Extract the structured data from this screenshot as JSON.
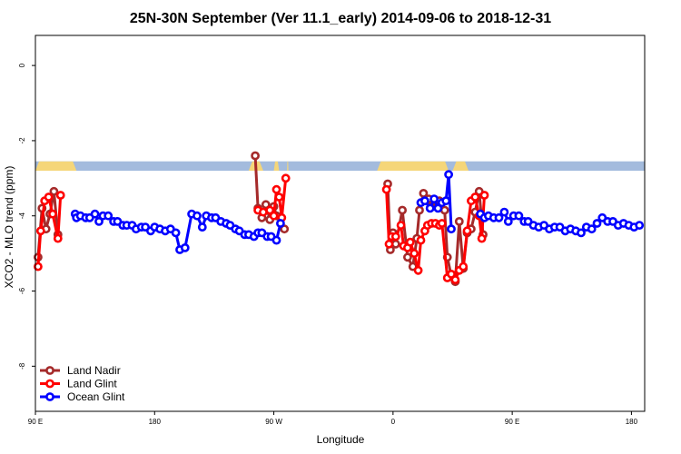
{
  "chart_data": {
    "type": "line",
    "title": "25N-30N September (Ver 11.1_early)   2014-09-06 to 2018-12-31",
    "xlabel": "Longitude",
    "ylabel": "XCO2 - MLO trend (ppm)",
    "xlim": [
      90,
      550
    ],
    "ylim": [
      -9.2,
      0.8
    ],
    "x_ticks": [
      {
        "value": 90,
        "label": "90 E"
      },
      {
        "value": 180,
        "label": "180"
      },
      {
        "value": 270,
        "label": "90 W"
      },
      {
        "value": 360,
        "label": "0"
      },
      {
        "value": 450,
        "label": "90 E"
      },
      {
        "value": 540,
        "label": "180"
      }
    ],
    "y_ticks": [
      {
        "value": 0,
        "label": "0"
      },
      {
        "value": -2,
        "label": "-2"
      },
      {
        "value": -4,
        "label": "-4"
      },
      {
        "value": -6,
        "label": "-6"
      },
      {
        "value": -8,
        "label": "-8"
      }
    ],
    "legend_position": "bottom-left",
    "land_mask": {
      "y_range": [
        -2.55,
        -2.8
      ],
      "ocean_color": "#a3bbdd",
      "land_color": "#f5d679",
      "land_segments": [
        [
          90,
          121
        ],
        [
          251,
          262
        ],
        [
          270,
          274
        ],
        [
          280,
          281
        ],
        [
          348,
          402
        ],
        [
          405,
          417
        ]
      ]
    },
    "series": [
      {
        "name": "Land Nadir",
        "color": "#a52a2a",
        "segments": [
          [
            [
              92,
              -5.1
            ],
            [
              95,
              -3.8
            ],
            [
              98,
              -4.35
            ],
            [
              101,
              -3.95
            ],
            [
              104,
              -3.35
            ],
            [
              107,
              -4.5
            ]
          ],
          [
            [
              256,
              -2.4
            ],
            [
              258,
              -3.8
            ],
            [
              261,
              -4.05
            ],
            [
              264,
              -3.7
            ],
            [
              267,
              -4.1
            ],
            [
              270,
              -3.75
            ],
            [
              272,
              -4.0
            ],
            [
              278,
              -4.35
            ]
          ],
          [
            [
              356,
              -3.15
            ],
            [
              358,
              -4.9
            ],
            [
              360,
              -4.45
            ],
            [
              362,
              -4.75
            ],
            [
              367,
              -3.85
            ],
            [
              371,
              -5.1
            ],
            [
              375,
              -5.35
            ],
            [
              378,
              -4.6
            ],
            [
              380,
              -3.85
            ],
            [
              383,
              -3.4
            ],
            [
              387,
              -3.55
            ],
            [
              390,
              -3.7
            ],
            [
              393,
              -3.75
            ],
            [
              395,
              -3.6
            ],
            [
              399,
              -3.85
            ],
            [
              401,
              -5.1
            ],
            [
              404,
              -5.6
            ],
            [
              407,
              -5.75
            ],
            [
              410,
              -4.15
            ],
            [
              413,
              -5.4
            ],
            [
              416,
              -4.45
            ],
            [
              419,
              -4.35
            ],
            [
              422,
              -3.9
            ],
            [
              425,
              -3.35
            ],
            [
              428,
              -4.5
            ]
          ]
        ]
      },
      {
        "name": "Land Glint",
        "color": "#ff0000",
        "segments": [
          [
            [
              92,
              -5.35
            ],
            [
              94,
              -4.4
            ],
            [
              97,
              -3.6
            ],
            [
              100,
              -3.5
            ],
            [
              103,
              -3.95
            ],
            [
              107,
              -4.6
            ],
            [
              109,
              -3.45
            ]
          ],
          [
            [
              258,
              -3.85
            ],
            [
              262,
              -3.9
            ],
            [
              267,
              -3.85
            ],
            [
              270,
              -4.0
            ],
            [
              272,
              -3.3
            ],
            [
              274,
              -3.5
            ],
            [
              276,
              -4.05
            ],
            [
              279,
              -3.0
            ]
          ],
          [
            [
              355,
              -3.3
            ],
            [
              357,
              -4.75
            ],
            [
              359,
              -4.55
            ],
            [
              362,
              -4.55
            ],
            [
              366,
              -4.25
            ],
            [
              368,
              -4.8
            ],
            [
              371,
              -4.85
            ],
            [
              373,
              -4.7
            ],
            [
              376,
              -5.0
            ],
            [
              379,
              -5.45
            ],
            [
              381,
              -4.65
            ],
            [
              384,
              -4.4
            ],
            [
              386,
              -4.25
            ],
            [
              389,
              -4.2
            ],
            [
              392,
              -4.2
            ],
            [
              395,
              -4.25
            ],
            [
              397,
              -4.2
            ],
            [
              401,
              -5.65
            ],
            [
              404,
              -5.55
            ],
            [
              407,
              -5.7
            ],
            [
              410,
              -5.45
            ],
            [
              413,
              -5.35
            ],
            [
              416,
              -4.4
            ],
            [
              419,
              -3.6
            ],
            [
              422,
              -3.5
            ],
            [
              425,
              -4.0
            ],
            [
              427,
              -4.6
            ],
            [
              429,
              -3.45
            ]
          ]
        ]
      },
      {
        "name": "Ocean Glint",
        "color": "#0000ff",
        "segments": [
          [
            [
              120,
              -3.95
            ],
            [
              121,
              -4.05
            ],
            [
              124,
              -4.0
            ],
            [
              128,
              -4.05
            ],
            [
              131,
              -4.05
            ],
            [
              135,
              -3.95
            ],
            [
              138,
              -4.15
            ],
            [
              141,
              -4.0
            ],
            [
              145,
              -4.0
            ],
            [
              149,
              -4.15
            ],
            [
              152,
              -4.15
            ],
            [
              156,
              -4.25
            ],
            [
              159,
              -4.25
            ],
            [
              163,
              -4.25
            ],
            [
              166,
              -4.35
            ],
            [
              170,
              -4.3
            ],
            [
              173,
              -4.3
            ],
            [
              177,
              -4.4
            ],
            [
              180,
              -4.3
            ],
            [
              184,
              -4.35
            ],
            [
              188,
              -4.4
            ],
            [
              192,
              -4.35
            ],
            [
              196,
              -4.45
            ],
            [
              199,
              -4.9
            ],
            [
              203,
              -4.85
            ],
            [
              208,
              -3.95
            ],
            [
              212,
              -4.0
            ],
            [
              216,
              -4.3
            ],
            [
              219,
              -4.0
            ],
            [
              223,
              -4.05
            ],
            [
              226,
              -4.05
            ],
            [
              230,
              -4.15
            ],
            [
              234,
              -4.2
            ],
            [
              237,
              -4.25
            ],
            [
              241,
              -4.35
            ],
            [
              244,
              -4.4
            ],
            [
              248,
              -4.5
            ],
            [
              251,
              -4.5
            ],
            [
              255,
              -4.55
            ],
            [
              258,
              -4.45
            ],
            [
              261,
              -4.45
            ],
            [
              265,
              -4.55
            ],
            [
              268,
              -4.55
            ],
            [
              272,
              -4.65
            ],
            [
              275,
              -4.2
            ]
          ],
          [
            [
              381,
              -3.65
            ],
            [
              384,
              -3.6
            ],
            [
              388,
              -3.8
            ],
            [
              391,
              -3.55
            ],
            [
              394,
              -3.8
            ],
            [
              397,
              -3.65
            ],
            [
              400,
              -3.6
            ],
            [
              402,
              -2.9
            ],
            [
              404,
              -4.35
            ]
          ],
          [
            [
              426,
              -3.95
            ],
            [
              429,
              -4.05
            ],
            [
              432,
              -4.0
            ],
            [
              436,
              -4.05
            ],
            [
              440,
              -4.05
            ],
            [
              444,
              -3.9
            ],
            [
              447,
              -4.15
            ],
            [
              451,
              -4.0
            ],
            [
              455,
              -4.0
            ],
            [
              459,
              -4.15
            ],
            [
              462,
              -4.15
            ],
            [
              466,
              -4.25
            ],
            [
              470,
              -4.3
            ],
            [
              474,
              -4.25
            ],
            [
              478,
              -4.35
            ],
            [
              482,
              -4.3
            ],
            [
              486,
              -4.3
            ],
            [
              490,
              -4.4
            ],
            [
              494,
              -4.35
            ],
            [
              498,
              -4.4
            ],
            [
              502,
              -4.45
            ],
            [
              506,
              -4.3
            ],
            [
              510,
              -4.35
            ],
            [
              514,
              -4.2
            ],
            [
              518,
              -4.05
            ],
            [
              522,
              -4.15
            ],
            [
              526,
              -4.15
            ],
            [
              530,
              -4.25
            ],
            [
              534,
              -4.2
            ],
            [
              538,
              -4.25
            ],
            [
              542,
              -4.3
            ],
            [
              546,
              -4.25
            ]
          ]
        ]
      }
    ]
  }
}
